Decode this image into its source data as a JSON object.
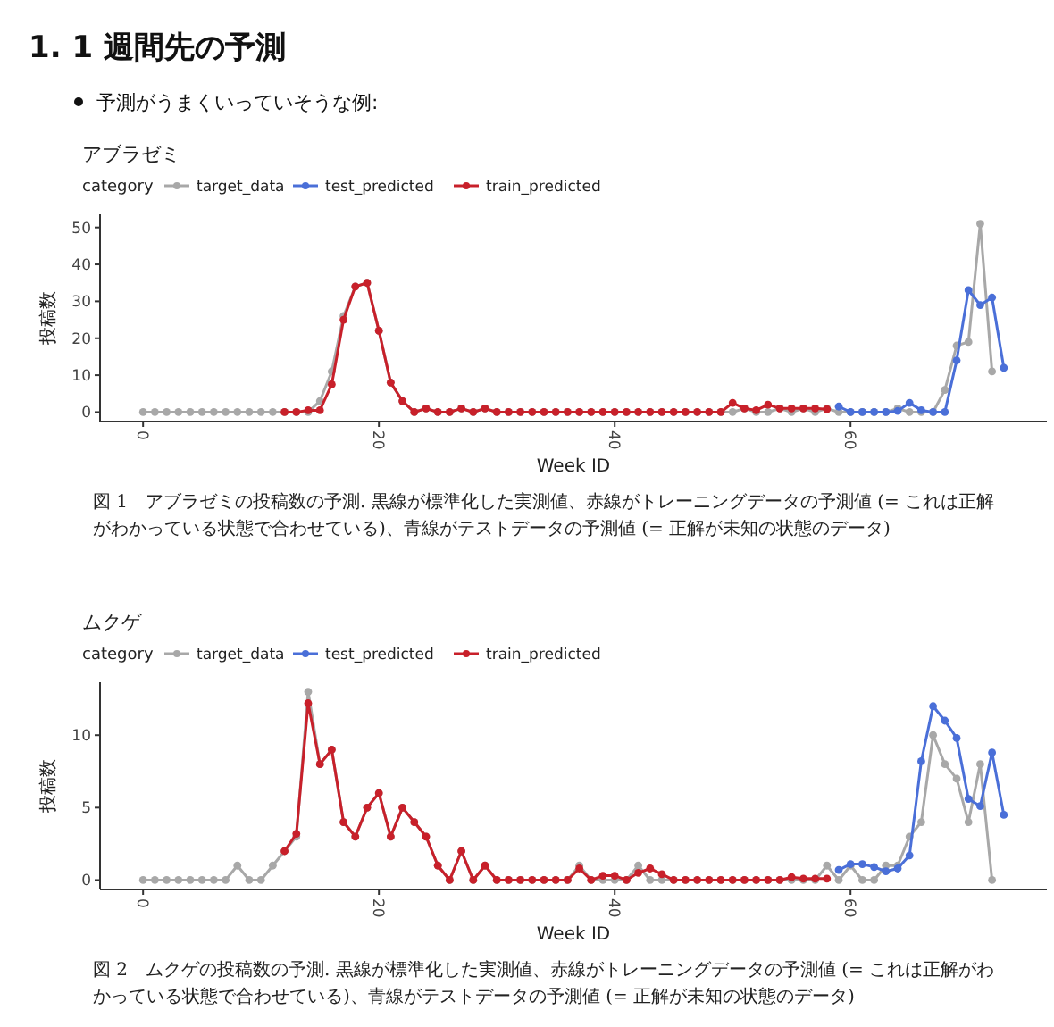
{
  "chart_data": [
    {
      "type": "line",
      "title": "アブラゼミ",
      "xlabel": "Week ID",
      "ylabel": "投稿数",
      "legend_title": "category",
      "legend": "top",
      "marker": "circle",
      "line_style": "solid",
      "xlim": [
        -3.65,
        76.65
      ],
      "xticks": [
        0,
        20,
        40,
        60
      ],
      "ylim": [
        -2.55,
        53.55
      ],
      "yticks": [
        0,
        10,
        20,
        30,
        40,
        50
      ],
      "annotations": [
        "1. 1 週間先の予測",
        "予測がうまくいっていそうな例:",
        "図 1　アブラゼミの投稿数の予測. 黒線が標準化した実測値、赤線がトレーニングデータの予測値 (= これは正解がわかっている状態で合わせている)、青線がテストデータの予測値 (= 正解が未知の状態のデータ)"
      ],
      "series": [
        {
          "name": "target_data",
          "color": "#a8a8a8",
          "x": [
            0,
            1,
            2,
            3,
            4,
            5,
            6,
            7,
            8,
            9,
            10,
            11,
            12,
            13,
            14,
            15,
            16,
            17,
            18,
            19,
            20,
            21,
            22,
            23,
            24,
            25,
            26,
            27,
            28,
            29,
            30,
            31,
            32,
            33,
            34,
            35,
            36,
            37,
            38,
            39,
            40,
            41,
            42,
            43,
            44,
            45,
            46,
            47,
            48,
            49,
            50,
            51,
            52,
            53,
            54,
            55,
            56,
            57,
            58,
            59,
            60,
            61,
            62,
            63,
            64,
            65,
            66,
            67,
            68,
            69,
            70,
            71,
            72
          ],
          "values": [
            0,
            0,
            0,
            0,
            0,
            0,
            0,
            0,
            0,
            0,
            0,
            0,
            0,
            0,
            0,
            3,
            11,
            26,
            34,
            35,
            22,
            8,
            3,
            0,
            1,
            0,
            0,
            1,
            0,
            1,
            0,
            0,
            0,
            0,
            0,
            0,
            0,
            0,
            0,
            0,
            0,
            0,
            0,
            0,
            0,
            0,
            0,
            0,
            0,
            0,
            0,
            1,
            0,
            0,
            1,
            0,
            1,
            0,
            1,
            0,
            0,
            0,
            0,
            0,
            1,
            0,
            0,
            0,
            6,
            18,
            19,
            51,
            11
          ]
        },
        {
          "name": "test_predicted",
          "color": "#4a6fd8",
          "x": [
            59,
            60,
            61,
            62,
            63,
            64,
            65,
            66,
            67,
            68,
            69,
            70,
            71,
            72,
            73
          ],
          "values": [
            1.5,
            0,
            0,
            0,
            0,
            0.3,
            2.5,
            0.5,
            0,
            0,
            14,
            33,
            29,
            31,
            12
          ]
        },
        {
          "name": "train_predicted",
          "color": "#c8202a",
          "x": [
            12,
            13,
            14,
            15,
            16,
            17,
            18,
            19,
            20,
            21,
            22,
            23,
            24,
            25,
            26,
            27,
            28,
            29,
            30,
            31,
            32,
            33,
            34,
            35,
            36,
            37,
            38,
            39,
            40,
            41,
            42,
            43,
            44,
            45,
            46,
            47,
            48,
            49,
            50,
            51,
            52,
            53,
            54,
            55,
            56,
            57,
            58
          ],
          "values": [
            0,
            0,
            0.5,
            0.5,
            7.5,
            25,
            34,
            35,
            22,
            8,
            3,
            0,
            1,
            0,
            0,
            1,
            0,
            1,
            0,
            0,
            0,
            0,
            0,
            0,
            0,
            0,
            0,
            0,
            0,
            0,
            0,
            0,
            0,
            0,
            0,
            0,
            0,
            0,
            2.5,
            1,
            0.5,
            2,
            1,
            1,
            1,
            1,
            0.8
          ]
        }
      ]
    },
    {
      "type": "line",
      "title": "ムクゲ",
      "xlabel": "Week ID",
      "ylabel": "投稿数",
      "legend_title": "category",
      "legend": "top",
      "marker": "circle",
      "line_style": "solid",
      "xlim": [
        -3.65,
        76.65
      ],
      "xticks": [
        0,
        20,
        40,
        60
      ],
      "ylim": [
        -0.65,
        13.65
      ],
      "yticks": [
        0,
        5,
        10
      ],
      "annotations": [
        "図 2　ムクゲの投稿数の予測. 黒線が標準化した実測値、赤線がトレーニングデータの予測値 (= これは正解がわかっている状態で合わせている)、青線がテストデータの予測値 (= 正解が未知の状態のデータ)"
      ],
      "series": [
        {
          "name": "target_data",
          "color": "#a8a8a8",
          "x": [
            0,
            1,
            2,
            3,
            4,
            5,
            6,
            7,
            8,
            9,
            10,
            11,
            12,
            13,
            14,
            15,
            16,
            17,
            18,
            19,
            20,
            21,
            22,
            23,
            24,
            25,
            26,
            27,
            28,
            29,
            30,
            31,
            32,
            33,
            34,
            35,
            36,
            37,
            38,
            39,
            40,
            41,
            42,
            43,
            44,
            45,
            46,
            47,
            48,
            49,
            50,
            51,
            52,
            53,
            54,
            55,
            56,
            57,
            58,
            59,
            60,
            61,
            62,
            63,
            64,
            65,
            66,
            67,
            68,
            69,
            70,
            71,
            72
          ],
          "values": [
            0,
            0,
            0,
            0,
            0,
            0,
            0,
            0,
            1,
            0,
            0,
            1,
            2,
            3,
            13,
            8,
            9,
            4,
            3,
            5,
            6,
            3,
            5,
            4,
            3,
            1,
            0,
            2,
            0,
            1,
            0,
            0,
            0,
            0,
            0,
            0,
            0,
            1,
            0,
            0,
            0,
            0,
            1,
            0,
            0,
            0,
            0,
            0,
            0,
            0,
            0,
            0,
            0,
            0,
            0,
            0,
            0,
            0,
            1,
            0,
            1,
            0,
            0,
            1,
            1,
            3,
            4,
            10,
            8,
            7,
            4,
            8,
            0
          ]
        },
        {
          "name": "test_predicted",
          "color": "#4a6fd8",
          "x": [
            59,
            60,
            61,
            62,
            63,
            64,
            65,
            66,
            67,
            68,
            69,
            70,
            71,
            72,
            73
          ],
          "values": [
            0.7,
            1.1,
            1.1,
            0.9,
            0.6,
            0.8,
            1.7,
            8.2,
            12,
            11,
            9.8,
            5.6,
            5.1,
            8.8,
            4.5
          ]
        },
        {
          "name": "train_predicted",
          "color": "#c8202a",
          "x": [
            12,
            13,
            14,
            15,
            16,
            17,
            18,
            19,
            20,
            21,
            22,
            23,
            24,
            25,
            26,
            27,
            28,
            29,
            30,
            31,
            32,
            33,
            34,
            35,
            36,
            37,
            38,
            39,
            40,
            41,
            42,
            43,
            44,
            45,
            46,
            47,
            48,
            49,
            50,
            51,
            52,
            53,
            54,
            55,
            56,
            57,
            58
          ],
          "values": [
            2,
            3.2,
            12.2,
            8,
            9,
            4,
            3,
            5,
            6,
            3,
            5,
            4,
            3,
            1,
            0,
            2,
            0,
            1,
            0,
            0,
            0,
            0,
            0,
            0,
            0,
            0.8,
            0,
            0.3,
            0.3,
            0,
            0.5,
            0.8,
            0.4,
            0,
            0,
            0,
            0,
            0,
            0,
            0,
            0,
            0,
            0,
            0.2,
            0.1,
            0.1,
            0.1
          ]
        }
      ]
    }
  ]
}
